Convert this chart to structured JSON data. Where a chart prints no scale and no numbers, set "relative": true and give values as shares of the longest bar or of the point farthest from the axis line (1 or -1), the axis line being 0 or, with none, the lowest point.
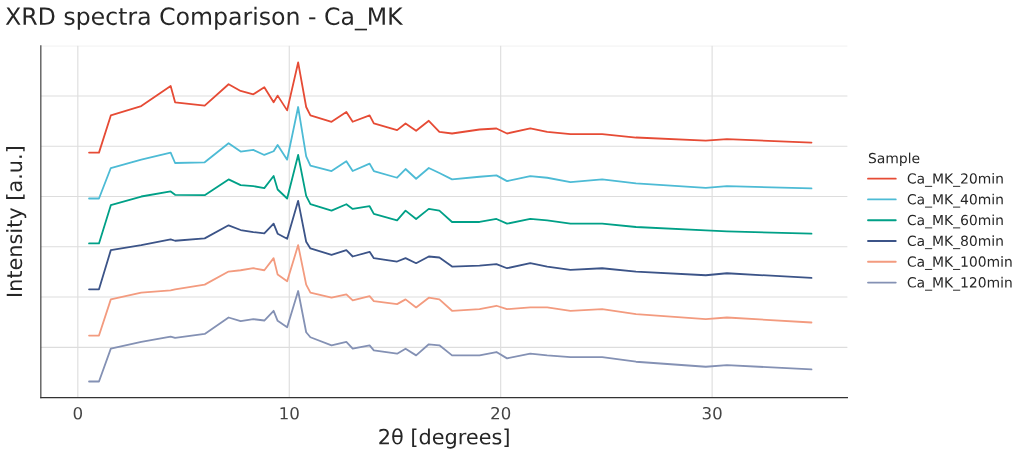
{
  "chart_data": {
    "type": "line",
    "title": "XRD spectra Comparison - Ca_MK",
    "xlabel": "2θ [degrees]",
    "ylabel": "Intensity [a.u.]",
    "legend_title": "Sample",
    "legend": "right",
    "relative": true,
    "grid": true,
    "xlim": [
      -1.75,
      36.4
    ],
    "xticks": [
      0,
      10,
      20,
      30
    ],
    "x": [
      0.53,
      1.0,
      1.56,
      3.0,
      4.39,
      4.6,
      6.0,
      7.13,
      7.7,
      8.3,
      8.82,
      9.26,
      9.45,
      9.9,
      10.42,
      10.8,
      11.0,
      12.0,
      12.7,
      13.0,
      13.8,
      14.0,
      15.1,
      15.5,
      16.0,
      16.6,
      17.1,
      17.7,
      19.0,
      19.8,
      20.3,
      21.4,
      22.2,
      23.3,
      24.8,
      26.4,
      29.7,
      30.7,
      34.7
    ],
    "series": [
      {
        "name": "Ca_MK_20min",
        "color": "#e64b35",
        "values": [
          0.731,
          0.731,
          0.842,
          0.87,
          0.93,
          0.881,
          0.871,
          0.935,
          0.915,
          0.905,
          0.926,
          0.881,
          0.901,
          0.857,
          1.0,
          0.867,
          0.842,
          0.823,
          0.852,
          0.823,
          0.842,
          0.818,
          0.798,
          0.818,
          0.796,
          0.826,
          0.793,
          0.788,
          0.8,
          0.803,
          0.788,
          0.803,
          0.793,
          0.786,
          0.786,
          0.776,
          0.767,
          0.771,
          0.761
        ]
      },
      {
        "name": "Ca_MK_40min",
        "color": "#4dbbd5",
        "values": [
          0.594,
          0.594,
          0.685,
          0.71,
          0.731,
          0.7,
          0.702,
          0.759,
          0.734,
          0.739,
          0.724,
          0.735,
          0.754,
          0.71,
          0.867,
          0.72,
          0.692,
          0.676,
          0.705,
          0.676,
          0.698,
          0.676,
          0.656,
          0.682,
          0.653,
          0.685,
          0.67,
          0.651,
          0.659,
          0.663,
          0.646,
          0.661,
          0.656,
          0.643,
          0.651,
          0.639,
          0.626,
          0.631,
          0.624
        ]
      },
      {
        "name": "Ca_MK_60min",
        "color": "#00a087",
        "values": [
          0.46,
          0.46,
          0.574,
          0.6,
          0.615,
          0.605,
          0.604,
          0.651,
          0.634,
          0.631,
          0.625,
          0.661,
          0.621,
          0.594,
          0.724,
          0.602,
          0.577,
          0.558,
          0.577,
          0.563,
          0.571,
          0.548,
          0.529,
          0.558,
          0.533,
          0.563,
          0.558,
          0.524,
          0.524,
          0.533,
          0.519,
          0.533,
          0.529,
          0.519,
          0.519,
          0.509,
          0.499,
          0.496,
          0.489
        ]
      },
      {
        "name": "Ca_MK_80min",
        "color": "#3c5488",
        "values": [
          0.323,
          0.323,
          0.44,
          0.455,
          0.472,
          0.468,
          0.475,
          0.514,
          0.5,
          0.494,
          0.49,
          0.519,
          0.489,
          0.474,
          0.587,
          0.465,
          0.445,
          0.426,
          0.44,
          0.421,
          0.435,
          0.416,
          0.406,
          0.416,
          0.401,
          0.421,
          0.418,
          0.391,
          0.394,
          0.398,
          0.386,
          0.401,
          0.391,
          0.381,
          0.386,
          0.376,
          0.365,
          0.371,
          0.357
        ]
      },
      {
        "name": "Ca_MK_100min",
        "color": "#f39b7f",
        "values": [
          0.185,
          0.185,
          0.293,
          0.313,
          0.32,
          0.323,
          0.337,
          0.376,
          0.38,
          0.386,
          0.38,
          0.416,
          0.367,
          0.347,
          0.455,
          0.337,
          0.313,
          0.298,
          0.308,
          0.29,
          0.303,
          0.288,
          0.279,
          0.293,
          0.269,
          0.298,
          0.293,
          0.259,
          0.264,
          0.274,
          0.264,
          0.269,
          0.269,
          0.259,
          0.264,
          0.249,
          0.234,
          0.239,
          0.224
        ]
      },
      {
        "name": "Ca_MK_120min",
        "color": "#8491b4",
        "values": [
          0.048,
          0.048,
          0.146,
          0.166,
          0.182,
          0.178,
          0.19,
          0.239,
          0.228,
          0.234,
          0.23,
          0.259,
          0.229,
          0.21,
          0.318,
          0.195,
          0.18,
          0.156,
          0.166,
          0.146,
          0.156,
          0.141,
          0.131,
          0.146,
          0.126,
          0.159,
          0.156,
          0.126,
          0.126,
          0.136,
          0.117,
          0.131,
          0.126,
          0.121,
          0.121,
          0.107,
          0.092,
          0.097,
          0.084
        ]
      }
    ]
  }
}
